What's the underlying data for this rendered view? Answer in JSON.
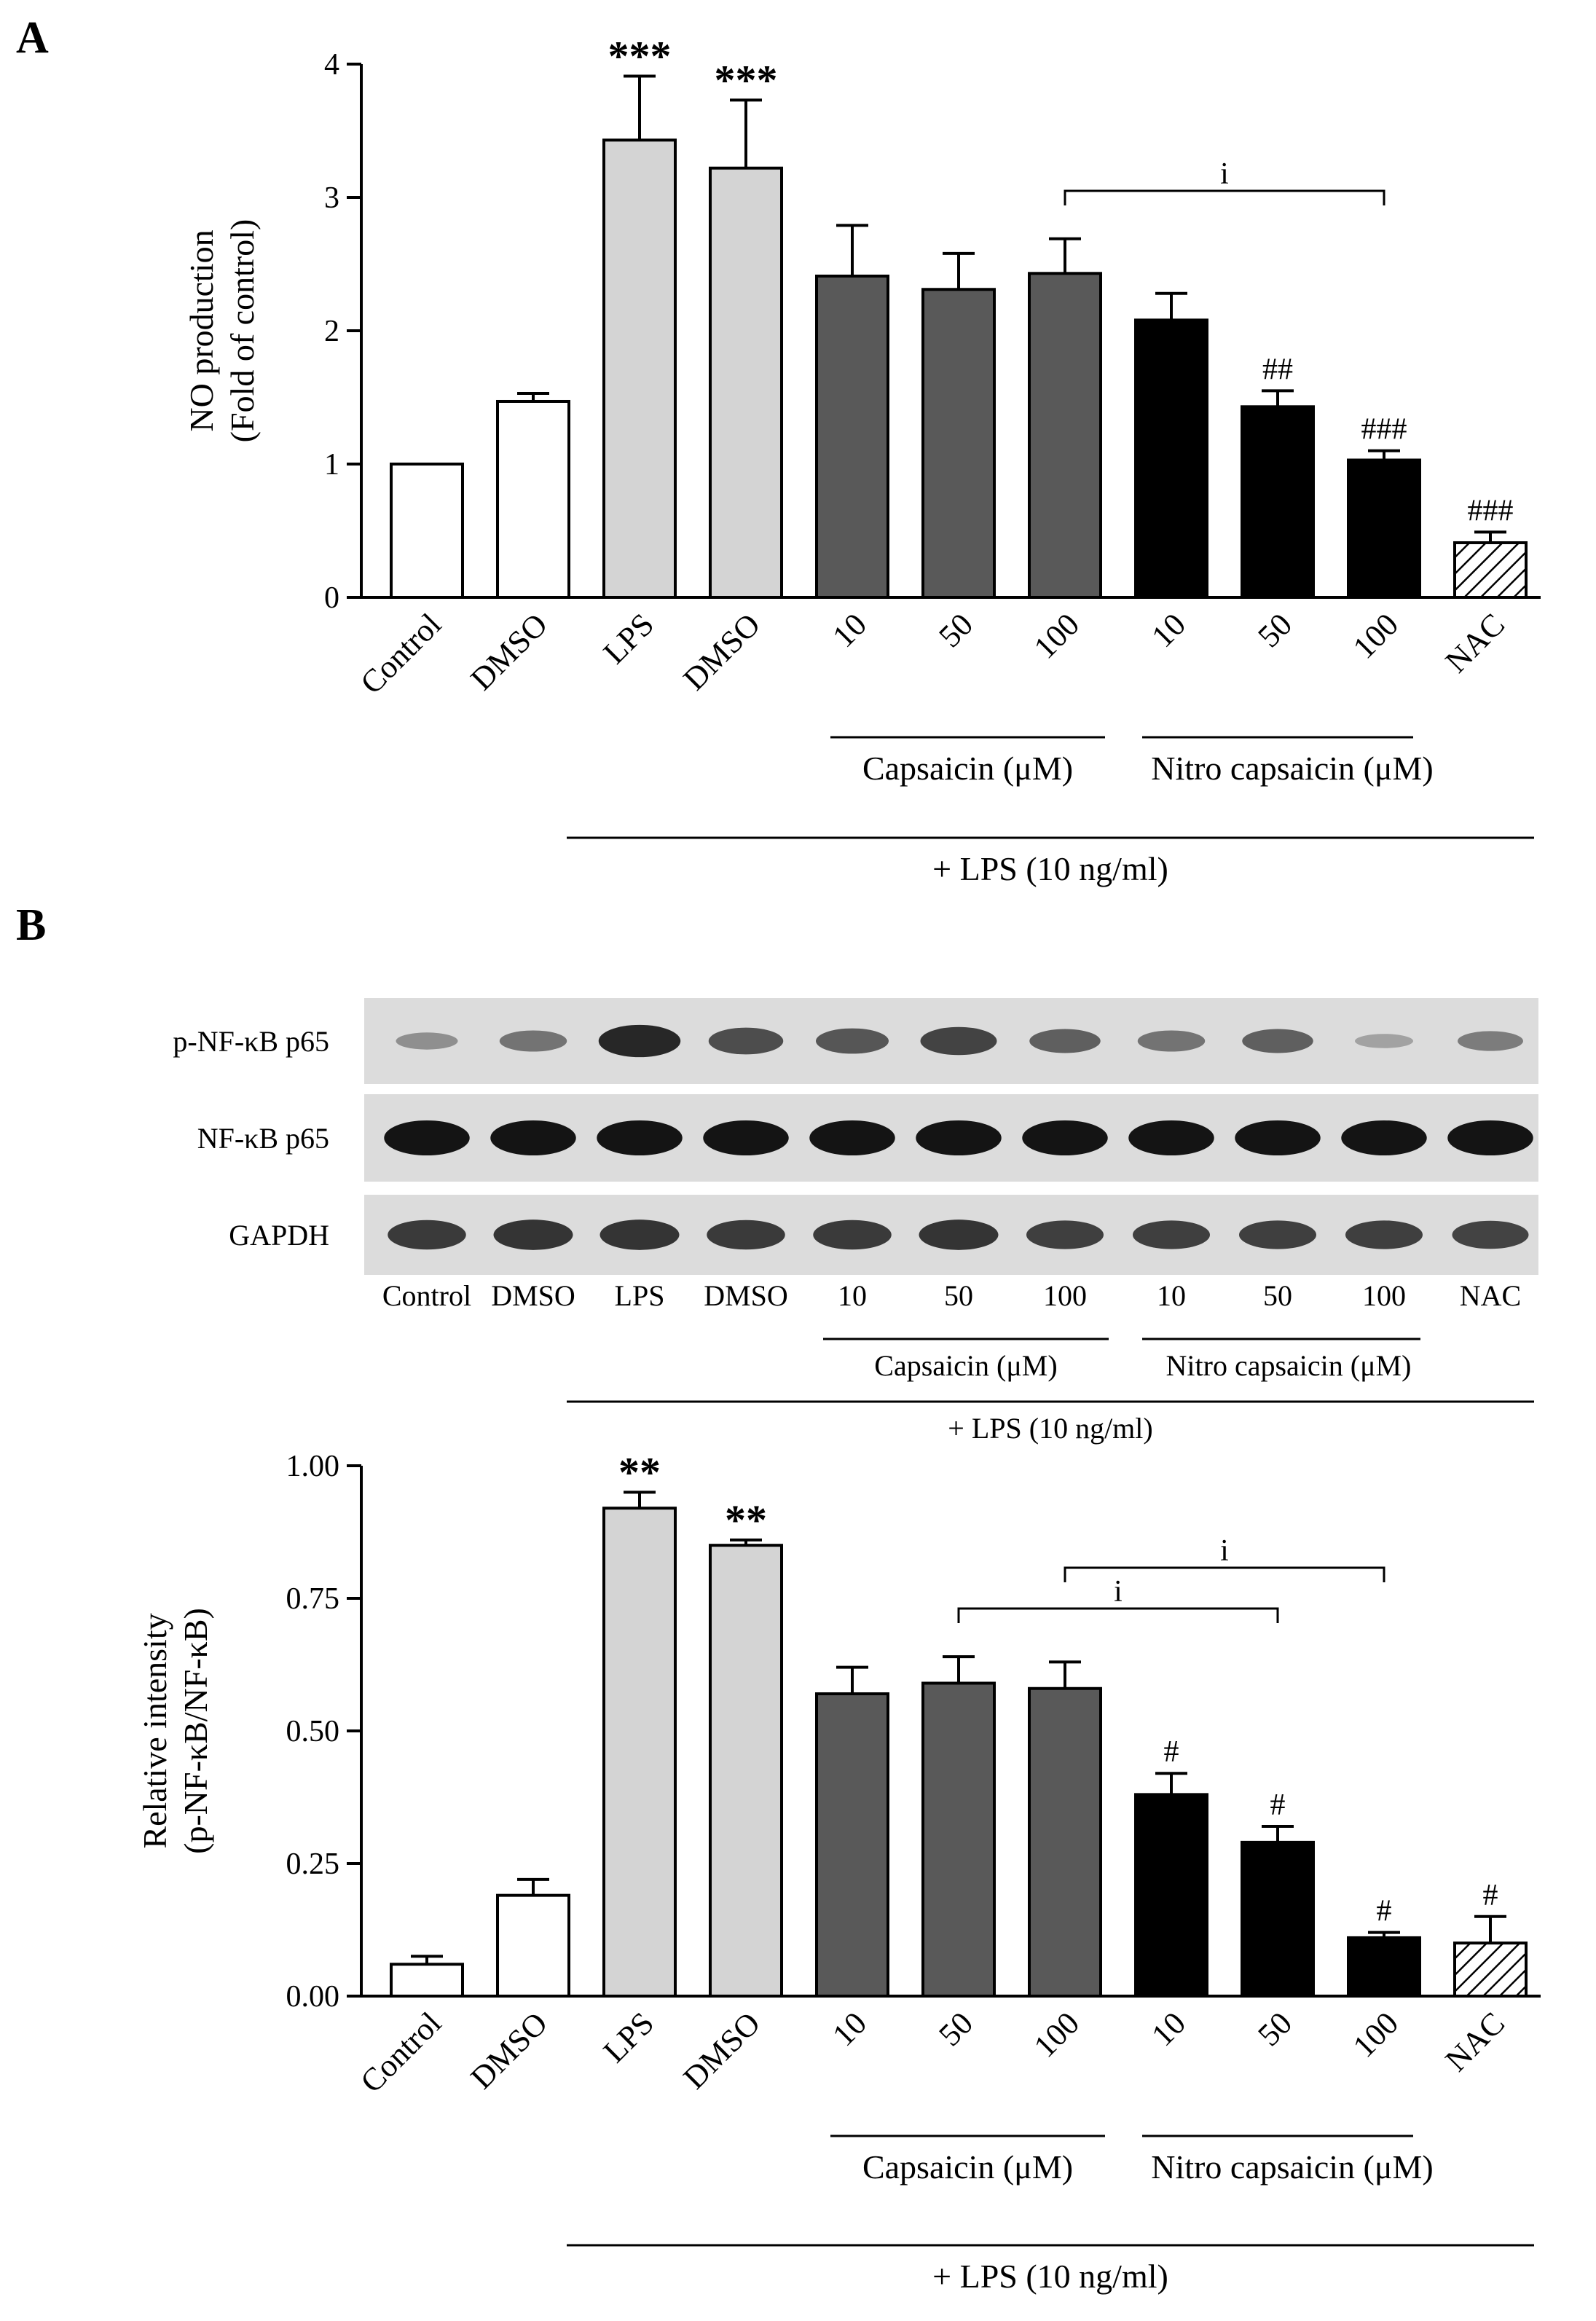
{
  "panels": {
    "a_label": "A",
    "b_label": "B"
  },
  "colors": {
    "white": "#ffffff",
    "light_gray": "#d4d4d4",
    "dark_gray": "#595959",
    "black": "#000000",
    "hatch_stroke": "#000000"
  },
  "blot": {
    "rows": [
      {
        "label": "p-NF-κB p65",
        "intensities": [
          0.3,
          0.45,
          0.85,
          0.65,
          0.6,
          0.7,
          0.55,
          0.45,
          0.55,
          0.2,
          0.4
        ]
      },
      {
        "label": "NF-κB p65",
        "intensities": [
          0.95,
          0.95,
          0.95,
          0.95,
          0.95,
          0.95,
          0.95,
          0.95,
          0.95,
          0.95,
          0.95
        ]
      },
      {
        "label": "GAPDH",
        "intensities": [
          0.75,
          0.78,
          0.78,
          0.75,
          0.75,
          0.78,
          0.72,
          0.72,
          0.72,
          0.72,
          0.7
        ]
      }
    ],
    "lane_labels": [
      "Control",
      "DMSO",
      "LPS",
      "DMSO",
      "10",
      "50",
      "100",
      "10",
      "50",
      "100",
      "NAC"
    ],
    "group_labels": {
      "capsaicin": "Capsaicin (μM)",
      "nitro": "Nitro capsaicin (μM)",
      "lps": "+ LPS (10 ng/ml)"
    }
  },
  "chart_data": [
    {
      "type": "bar",
      "panel": "A",
      "title": "",
      "ylabel": "NO production",
      "ylabel2": "(Fold of control)",
      "ylim": [
        0,
        4
      ],
      "yticks": [
        "0",
        "1",
        "2",
        "3",
        "4"
      ],
      "categories": [
        "Control",
        "DMSO",
        "LPS",
        "DMSO",
        "10",
        "50",
        "100",
        "10",
        "50",
        "100",
        "NAC"
      ],
      "values": [
        1.0,
        1.47,
        3.43,
        3.22,
        2.41,
        2.31,
        2.43,
        2.08,
        1.43,
        1.03,
        0.41
      ],
      "errors": [
        0.0,
        0.06,
        0.48,
        0.51,
        0.38,
        0.27,
        0.26,
        0.2,
        0.12,
        0.07,
        0.08
      ],
      "fills": [
        "white",
        "white",
        "light_gray",
        "light_gray",
        "dark_gray",
        "dark_gray",
        "dark_gray",
        "black",
        "black",
        "black",
        "hatch"
      ],
      "annotations": [
        "",
        "",
        "***",
        "***",
        "",
        "",
        "",
        "",
        "##",
        "###",
        "###"
      ],
      "brackets": [
        {
          "from": 6,
          "to": 9,
          "label": "i"
        }
      ],
      "group_labels": {
        "capsaicin": "Capsaicin (μM)",
        "nitro": "Nitro capsaicin (μM)",
        "lps": "+ LPS (10 ng/ml)"
      }
    },
    {
      "type": "bar",
      "panel": "B",
      "title": "",
      "ylabel": "Relative intensity",
      "ylabel2": "(p-NF-κB/NF-κB)",
      "ylim": [
        0,
        1.0
      ],
      "yticks": [
        "0.00",
        "0.25",
        "0.50",
        "0.75",
        "1.00"
      ],
      "categories": [
        "Control",
        "DMSO",
        "LPS",
        "DMSO",
        "10",
        "50",
        "100",
        "10",
        "50",
        "100",
        "NAC"
      ],
      "values": [
        0.06,
        0.19,
        0.92,
        0.85,
        0.57,
        0.59,
        0.58,
        0.38,
        0.29,
        0.11,
        0.1
      ],
      "errors": [
        0.015,
        0.03,
        0.03,
        0.01,
        0.05,
        0.05,
        0.05,
        0.04,
        0.03,
        0.01,
        0.05
      ],
      "fills": [
        "white",
        "white",
        "light_gray",
        "light_gray",
        "dark_gray",
        "dark_gray",
        "dark_gray",
        "black",
        "black",
        "black",
        "hatch"
      ],
      "annotations": [
        "",
        "",
        "**",
        "**",
        "",
        "",
        "",
        "#",
        "#",
        "#",
        "#"
      ],
      "brackets": [
        {
          "from": 5,
          "to": 8,
          "label": "i"
        },
        {
          "from": 6,
          "to": 9,
          "label": "i"
        }
      ],
      "group_labels": {
        "capsaicin": "Capsaicin (μM)",
        "nitro": "Nitro capsaicin (μM)",
        "lps": "+ LPS (10 ng/ml)"
      }
    }
  ]
}
